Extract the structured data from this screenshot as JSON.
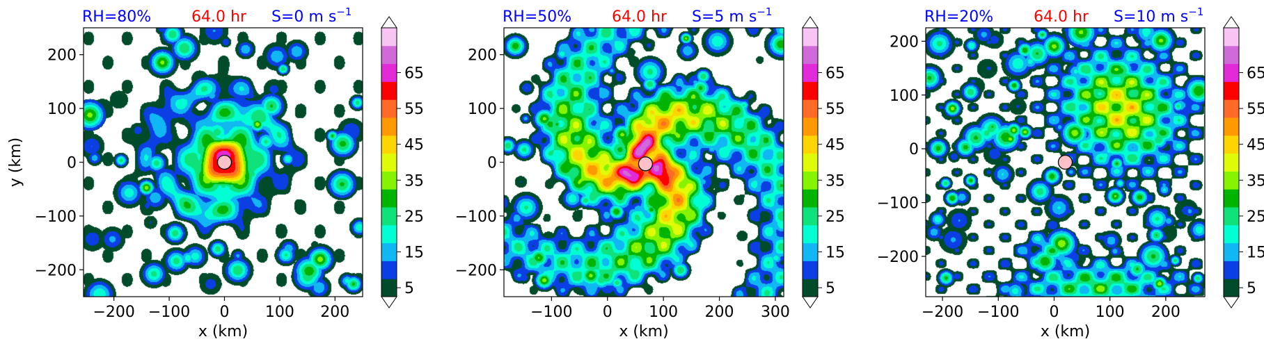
{
  "chart_data": [
    {
      "type": "heatmap",
      "title_left": "RH=80%",
      "title_center": "64.0 hr",
      "title_right": "S=0 m s",
      "title_right_sup": "−1",
      "xlabel": "x (km)",
      "ylabel": "y (km)",
      "xlim": [
        -255,
        250
      ],
      "ylim": [
        -250,
        250
      ],
      "xticks": [
        -200,
        -100,
        0,
        100,
        200
      ],
      "xtick_labels": [
        "−200",
        "−100",
        "0",
        "100",
        "200"
      ],
      "yticks": [
        -200,
        -100,
        0,
        100,
        200
      ],
      "ytick_labels": [
        "−200",
        "−100",
        "0",
        "100",
        "200"
      ],
      "storm_center": [
        0,
        0
      ],
      "pattern": "compact",
      "rotate": 0,
      "seed": 11
    },
    {
      "type": "heatmap",
      "title_left": "RH=50%",
      "title_center": "64.0 hr",
      "title_right": "S=5 m s",
      "title_right_sup": "−1",
      "xlabel": "x (km)",
      "ylabel": "",
      "xlim": [
        -185,
        315
      ],
      "ylim": [
        -250,
        250
      ],
      "xticks": [
        -100,
        0,
        100,
        200,
        300
      ],
      "xtick_labels": [
        "−100",
        "0",
        "100",
        "200",
        "300"
      ],
      "yticks": [
        -200,
        -100,
        0,
        100,
        200
      ],
      "ytick_labels": [
        "−200",
        "−100",
        "0",
        "100",
        "200"
      ],
      "storm_center": [
        68,
        -3
      ],
      "pattern": "spiral",
      "rotate": 0.3,
      "seed": 23
    },
    {
      "type": "heatmap",
      "title_left": "RH=20%",
      "title_center": "64.0 hr",
      "title_right": "S=10 m s",
      "title_right_sup": "−1",
      "xlabel": "x (km)",
      "ylabel": "",
      "xlim": [
        -230,
        270
      ],
      "ylim": [
        -275,
        225
      ],
      "xticks": [
        -200,
        -100,
        0,
        100,
        200
      ],
      "xtick_labels": [
        "−200",
        "−100",
        "0",
        "100",
        "200"
      ],
      "yticks": [
        -200,
        -100,
        0,
        100,
        200
      ],
      "ytick_labels": [
        "−200",
        "−100",
        "0",
        "100",
        "200"
      ],
      "storm_center": [
        20,
        -25
      ],
      "pattern": "sheared",
      "rotate": 0,
      "seed": 37
    }
  ],
  "colorbar": {
    "levels": [
      5,
      10,
      15,
      20,
      25,
      30,
      35,
      40,
      45,
      50,
      55,
      60,
      65,
      70
    ],
    "tick_labels": [
      "5",
      "15",
      "25",
      "35",
      "45",
      "55",
      "65"
    ],
    "colors": [
      "#004b2a",
      "#0b3ee3",
      "#11b7f3",
      "#00ffd3",
      "#0fe27a",
      "#00b400",
      "#86f300",
      "#e0fb08",
      "#ffd500",
      "#ff9900",
      "#ff6b26",
      "#ff0000",
      "#e32ad8",
      "#d06ad8",
      "#f8c4f3"
    ],
    "extend_below_color": "#ffffff",
    "extend_above_color": "#ffffff"
  },
  "colors": {
    "title_blue": "#0000ff",
    "title_red": "#ff0000",
    "marker_fill": "#ffc0c8"
  }
}
